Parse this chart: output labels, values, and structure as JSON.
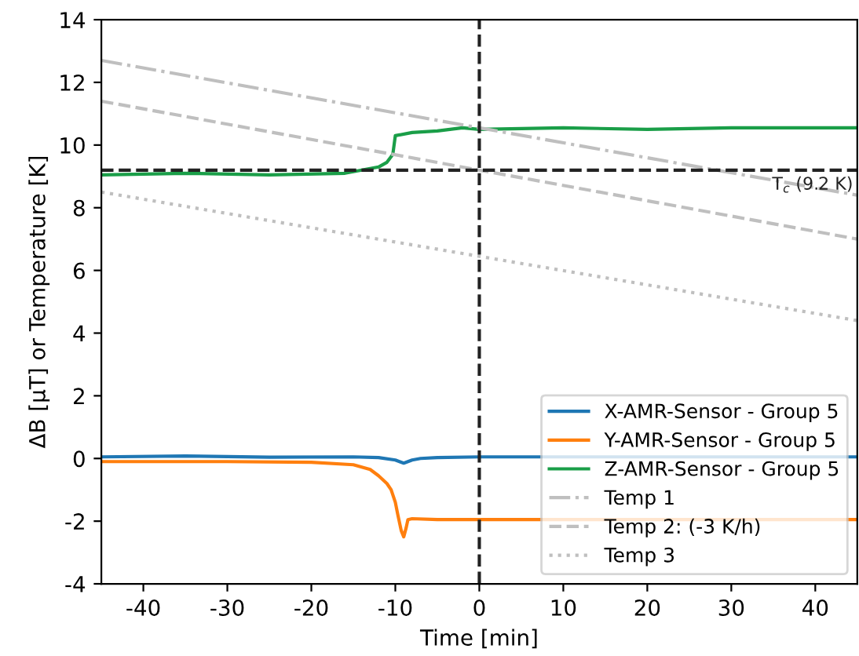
{
  "chart_data": {
    "type": "line",
    "xlabel": "Time [min]",
    "ylabel": "ΔB [μT] or Temperature [K]",
    "xlim": [
      -45,
      45
    ],
    "ylim": [
      -4,
      14
    ],
    "xticks": [
      -40,
      -30,
      -20,
      -10,
      0,
      10,
      20,
      30,
      40
    ],
    "yticks": [
      -4,
      -2,
      0,
      2,
      4,
      6,
      8,
      10,
      12,
      14
    ],
    "grid": false,
    "legend": "bottom right",
    "marker": "none",
    "series": [
      {
        "name": "X-AMR-Sensor - Group 5",
        "color": "#1f77b4",
        "line_style": "solid",
        "x": [
          -45,
          -35,
          -25,
          -15,
          -12,
          -10,
          -9,
          -8,
          -7,
          -5,
          0,
          5,
          45
        ],
        "values": [
          0.05,
          0.08,
          0.04,
          0.05,
          0.03,
          -0.05,
          -0.15,
          -0.05,
          0.0,
          0.03,
          0.05,
          0.05,
          0.05
        ]
      },
      {
        "name": "Y-AMR-Sensor - Group 5",
        "color": "#ff7f0e",
        "line_style": "solid",
        "x": [
          -45,
          -30,
          -20,
          -15,
          -13,
          -12,
          -11,
          -10.5,
          -10,
          -9.7,
          -9.3,
          -9,
          -8.7,
          -8.5,
          -8,
          -5,
          0,
          5,
          45
        ],
        "values": [
          -0.1,
          -0.1,
          -0.12,
          -0.2,
          -0.35,
          -0.55,
          -0.8,
          -1.0,
          -1.4,
          -1.8,
          -2.3,
          -2.5,
          -2.2,
          -1.95,
          -1.92,
          -1.95,
          -1.95,
          -1.95,
          -1.95
        ]
      },
      {
        "name": "Z-AMR-Sensor - Group 5",
        "color": "#1a9e48",
        "line_style": "solid",
        "x": [
          -45,
          -35,
          -25,
          -16,
          -14,
          -12,
          -11,
          -10.3,
          -10,
          -8,
          -5,
          -2,
          0,
          10,
          20,
          30,
          45
        ],
        "values": [
          9.05,
          9.1,
          9.05,
          9.1,
          9.2,
          9.3,
          9.45,
          9.7,
          10.3,
          10.4,
          10.45,
          10.55,
          10.5,
          10.55,
          10.5,
          10.55,
          10.55
        ]
      },
      {
        "name": "Temp 1",
        "color": "#bfbfbf",
        "line_style": "dashdot",
        "x": [
          -45,
          45
        ],
        "values": [
          12.7,
          8.4
        ]
      },
      {
        "name": "Temp 2: (-3 K/h)",
        "color": "#bfbfbf",
        "line_style": "dashed",
        "x": [
          -45,
          45
        ],
        "values": [
          11.4,
          7.0
        ]
      },
      {
        "name": "Temp 3",
        "color": "#bfbfbf",
        "line_style": "dotted",
        "x": [
          -45,
          45
        ],
        "values": [
          8.5,
          4.4
        ]
      }
    ],
    "ref_lines": [
      {
        "axis": "y",
        "value": 9.2,
        "label": "T$_{c}$ (9.2 K)",
        "color": "#222222",
        "line_style": "dashed"
      },
      {
        "axis": "x",
        "value": 0,
        "color": "#222222",
        "line_style": "dashed"
      }
    ]
  }
}
